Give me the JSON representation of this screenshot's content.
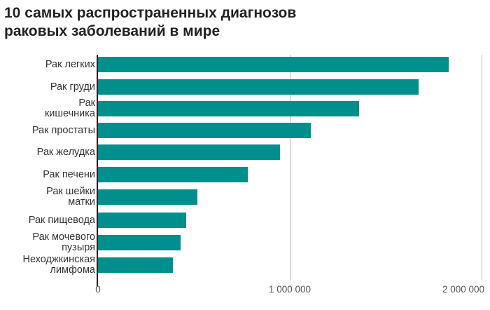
{
  "title_line1": "10 самых распространенных диагнозов",
  "title_line2": "раковых заболеваний в мире",
  "colors": {
    "bar": "#008f8c",
    "axis": "#222222",
    "grid": "#bbbbbb"
  },
  "chart_data": {
    "type": "bar",
    "orientation": "horizontal",
    "title": "10 самых распространенных диагнозов раковых заболеваний в мире",
    "categories": [
      "Рак легких",
      "Рак груди",
      "Рак кишечника",
      "Рак простаты",
      "Рак желудка",
      "Рак печени",
      "Рак шейки матки",
      "Рак пищевода",
      "Рак мочевого пузыря",
      "Неходжкинская лимфома"
    ],
    "values": [
      1830000,
      1670000,
      1360000,
      1110000,
      950000,
      780000,
      520000,
      460000,
      430000,
      390000
    ],
    "xlabel": "",
    "ylabel": "",
    "xlim": [
      0,
      2000000
    ],
    "xticks": [
      "0",
      "1 000 000",
      "2 000 000"
    ],
    "grid": true,
    "legend": null
  },
  "rows": [
    {
      "l1": "Рак легких",
      "l2": ""
    },
    {
      "l1": "Рак груди",
      "l2": ""
    },
    {
      "l1": "Рак",
      "l2": "кишечника"
    },
    {
      "l1": "Рак простаты",
      "l2": ""
    },
    {
      "l1": "Рак желудка",
      "l2": ""
    },
    {
      "l1": "Рак печени",
      "l2": ""
    },
    {
      "l1": "Рак шейки",
      "l2": "матки"
    },
    {
      "l1": "Рак пищевода",
      "l2": ""
    },
    {
      "l1": "Рак мочевого",
      "l2": "пузыря"
    },
    {
      "l1": "Неходжкинская",
      "l2": "лимфома"
    }
  ],
  "ticks": [
    "0",
    "1 000 000",
    "2 000 000"
  ]
}
